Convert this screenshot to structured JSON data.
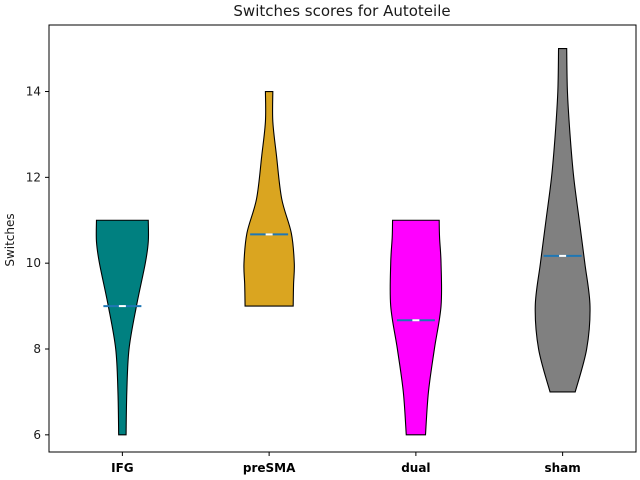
{
  "chart_data": {
    "type": "violin",
    "title": "Switches scores for Autoteile",
    "xlabel": "",
    "ylabel": "Switches",
    "ylim": [
      5.6,
      15.55
    ],
    "yticks": [
      6,
      8,
      10,
      12,
      14
    ],
    "grid": false,
    "legend": "none",
    "categories": [
      "IFG",
      "preSMA",
      "dual",
      "sham"
    ],
    "series": [
      {
        "category": "IFG",
        "color": "#008080",
        "min": 6,
        "max": 11,
        "mean": 9.0,
        "profile": [
          [
            6,
            0.1
          ],
          [
            7,
            0.12
          ],
          [
            8,
            0.18
          ],
          [
            9,
            0.38
          ],
          [
            10,
            0.62
          ],
          [
            10.5,
            0.7
          ],
          [
            11,
            0.7
          ]
        ]
      },
      {
        "category": "preSMA",
        "color": "#DAA520",
        "min": 9,
        "max": 14,
        "mean": 10.67,
        "profile": [
          [
            9,
            0.65
          ],
          [
            9.5,
            0.66
          ],
          [
            10,
            0.68
          ],
          [
            10.7,
            0.6
          ],
          [
            11.5,
            0.34
          ],
          [
            12.5,
            0.2
          ],
          [
            13.3,
            0.1
          ],
          [
            14,
            0.1
          ]
        ]
      },
      {
        "category": "dual",
        "color": "#FF00FF",
        "min": 6,
        "max": 11,
        "mean": 8.67,
        "profile": [
          [
            6,
            0.26
          ],
          [
            7,
            0.34
          ],
          [
            8,
            0.5
          ],
          [
            9,
            0.68
          ],
          [
            10,
            0.68
          ],
          [
            10.6,
            0.64
          ],
          [
            11,
            0.63
          ]
        ]
      },
      {
        "category": "sham",
        "color": "#808080",
        "min": 7,
        "max": 15,
        "mean": 10.17,
        "profile": [
          [
            7,
            0.34
          ],
          [
            8,
            0.65
          ],
          [
            9,
            0.74
          ],
          [
            10,
            0.6
          ],
          [
            11,
            0.45
          ],
          [
            12,
            0.3
          ],
          [
            13,
            0.2
          ],
          [
            14,
            0.13
          ],
          [
            15,
            0.11
          ]
        ]
      }
    ]
  }
}
